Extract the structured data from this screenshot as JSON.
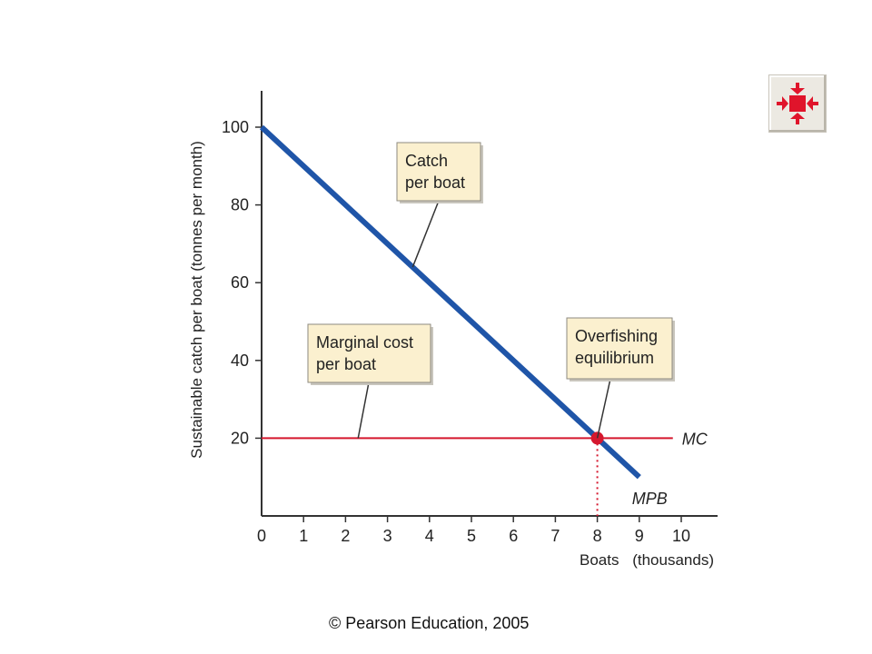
{
  "footer": {
    "copyright": "© Pearson Education, 2005"
  },
  "nav": {
    "icon": "fit-to-window-icon",
    "color": "#e0142b"
  },
  "colors": {
    "mpb": "#1f55a8",
    "mc": "#d5172e",
    "highlight": "#d5172e",
    "box_fill": "#fbf0cf",
    "box_stroke": "#8e8a80",
    "axis": "#333333"
  },
  "chart_data": {
    "type": "line",
    "ylabel": "Sustainable catch per boat (tonnes per month)",
    "xlabel": "Boats",
    "xlabel_unit": "(thousands)",
    "xlim": [
      0,
      11
    ],
    "ylim": [
      0,
      110
    ],
    "x_ticks": [
      0,
      1,
      2,
      3,
      4,
      5,
      6,
      7,
      8,
      9,
      10
    ],
    "x_tick_labels": [
      "0",
      "1",
      "2",
      "3",
      "4",
      "5",
      "6",
      "7",
      "8",
      "9",
      "10"
    ],
    "y_ticks": [
      20,
      40,
      60,
      80,
      100
    ],
    "y_tick_labels": [
      "20",
      "40",
      "60",
      "80",
      "100"
    ],
    "highlight_x": 8,
    "highlight_y": 20,
    "series": [
      {
        "name": "MPB",
        "x": [
          0,
          9
        ],
        "y": [
          100,
          10
        ],
        "color": "#1f55a8"
      },
      {
        "name": "MC",
        "x": [
          0,
          9.8
        ],
        "y": [
          20,
          20
        ],
        "color": "#d5172e"
      }
    ],
    "equilibrium": {
      "x": 8,
      "y": 20
    },
    "annotations": [
      {
        "text": [
          "Catch",
          "per boat"
        ],
        "target_x": 3.6,
        "target_y": 64
      },
      {
        "text": [
          "Marginal cost",
          "per boat"
        ],
        "target_x": 2.3,
        "target_y": 20
      },
      {
        "text": [
          "Overfishing",
          "equilibrium"
        ],
        "target_x": 8,
        "target_y": 20
      }
    ]
  }
}
